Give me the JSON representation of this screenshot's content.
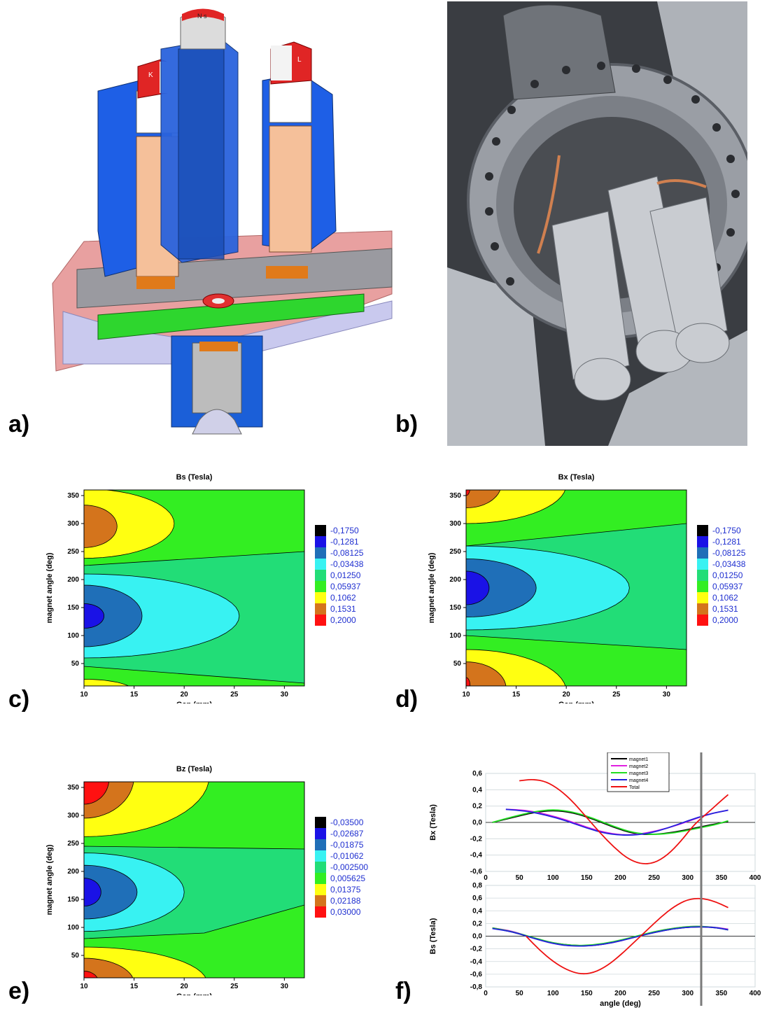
{
  "panel_labels": [
    "a)",
    "b)",
    "c)",
    "d)",
    "e)",
    "f)"
  ],
  "cad_magnet_letters": {
    "center": "N s",
    "left": "K",
    "right": "L"
  },
  "colors": {
    "black": "#000000",
    "blue": "#1a12e6",
    "mid_blue": "#1f6fb8",
    "cyan": "#38f2f2",
    "teal": "#22dd77",
    "green": "#33ee22",
    "yellow": "#ffff11",
    "orange": "#d4741c",
    "red": "#ff1111"
  },
  "contours": [
    {
      "id": "c",
      "title": "Bs (Tesla)",
      "xlabel": "Gap (mm)",
      "ylabel": "magnet angle (deg)",
      "xticks": [
        "10",
        "15",
        "20",
        "25",
        "30"
      ],
      "yticks": [
        "50",
        "100",
        "150",
        "200",
        "250",
        "300",
        "350"
      ],
      "colorbar": [
        "-0,1750",
        "-0,1281",
        "-0,08125",
        "-0,03438",
        "0,01250",
        "0,05937",
        "0,1062",
        "0,1531",
        "0,2000"
      ]
    },
    {
      "id": "d",
      "title": "Bx (Tesla)",
      "xlabel": "Gap (mm)",
      "ylabel": "magnet angle (deg)",
      "xticks": [
        "10",
        "15",
        "20",
        "25",
        "30"
      ],
      "yticks": [
        "50",
        "100",
        "150",
        "200",
        "250",
        "300",
        "350"
      ],
      "colorbar": [
        "-0,1750",
        "-0,1281",
        "-0,08125",
        "-0,03438",
        "0,01250",
        "0,05937",
        "0,1062",
        "0,1531",
        "0,2000"
      ]
    },
    {
      "id": "e",
      "title": "Bz (Tesla)",
      "xlabel": "Gap (mm)",
      "ylabel": "magnet angle (deg)",
      "xticks": [
        "10",
        "15",
        "20",
        "25",
        "30"
      ],
      "yticks": [
        "50",
        "100",
        "150",
        "200",
        "250",
        "300",
        "350"
      ],
      "colorbar": [
        "-0,03500",
        "-0,02687",
        "-0,01875",
        "-0,01062",
        "-0,002500",
        "0,005625",
        "0,01375",
        "0,02188",
        "0,03000"
      ]
    }
  ],
  "chart_data": [
    {
      "type": "line",
      "panel": "f-top",
      "ylabel": "Bx (Tesla)",
      "xlim": [
        0,
        400
      ],
      "ylim": [
        -0.6,
        0.6
      ],
      "xticks": [
        "0",
        "50",
        "100",
        "150",
        "200",
        "250",
        "300",
        "350",
        "400"
      ],
      "yticks": [
        "-0,6",
        "-0,4",
        "-0,2",
        "0,0",
        "0,2",
        "0,4",
        "0,6"
      ],
      "vertical_marker": 320,
      "series": [
        {
          "name": "magnet1",
          "color": "#000000",
          "x": [
            10,
            40,
            70,
            100,
            130,
            160,
            190,
            220,
            250,
            280,
            310,
            340,
            360
          ],
          "y": [
            0.0,
            0.06,
            0.12,
            0.15,
            0.12,
            0.04,
            -0.06,
            -0.14,
            -0.15,
            -0.12,
            -0.07,
            -0.02,
            0.01
          ]
        },
        {
          "name": "magnet2",
          "color": "#e020e0",
          "x": [
            30,
            60,
            90,
            120,
            150,
            180,
            210,
            240,
            270,
            300,
            330,
            360
          ],
          "y": [
            0.16,
            0.15,
            0.1,
            0.03,
            -0.06,
            -0.13,
            -0.16,
            -0.13,
            -0.07,
            0.01,
            0.1,
            0.15
          ]
        },
        {
          "name": "magnet3",
          "color": "#22dd22",
          "x": [
            10,
            40,
            70,
            100,
            130,
            160,
            190,
            220,
            250,
            280,
            310,
            340,
            360
          ],
          "y": [
            0.0,
            0.07,
            0.13,
            0.16,
            0.13,
            0.05,
            -0.05,
            -0.13,
            -0.15,
            -0.13,
            -0.08,
            -0.03,
            0.02
          ]
        },
        {
          "name": "magnet4",
          "color": "#2222dd",
          "x": [
            30,
            60,
            90,
            120,
            150,
            180,
            210,
            240,
            270,
            300,
            330,
            360
          ],
          "y": [
            0.16,
            0.14,
            0.09,
            0.02,
            -0.07,
            -0.14,
            -0.16,
            -0.14,
            -0.07,
            0.02,
            0.1,
            0.15
          ]
        },
        {
          "name": "Total",
          "color": "#ee1111",
          "x": [
            50,
            70,
            90,
            110,
            130,
            150,
            170,
            190,
            210,
            230,
            250,
            270,
            290,
            310,
            330,
            350,
            360
          ],
          "y": [
            0.51,
            0.53,
            0.5,
            0.4,
            0.25,
            0.06,
            -0.13,
            -0.3,
            -0.44,
            -0.51,
            -0.5,
            -0.4,
            -0.23,
            -0.02,
            0.12,
            0.27,
            0.34
          ]
        }
      ]
    },
    {
      "type": "line",
      "panel": "f-bottom",
      "xlabel": "angle (deg)",
      "ylabel": "Bs (Tesla)",
      "xlim": [
        0,
        400
      ],
      "ylim": [
        -0.8,
        0.8
      ],
      "xticks": [
        "0",
        "50",
        "100",
        "150",
        "200",
        "250",
        "300",
        "350",
        "400"
      ],
      "yticks": [
        "-0,8",
        "-0,6",
        "-0,4",
        "-0,2",
        "0,0",
        "0,2",
        "0,4",
        "0,6",
        "0,8"
      ],
      "vertical_marker": 320,
      "series": [
        {
          "name": "magnet1",
          "color": "#000000",
          "x": [
            10,
            40,
            70,
            100,
            130,
            160,
            190,
            220,
            250,
            280,
            310,
            340,
            360
          ],
          "y": [
            0.13,
            0.07,
            -0.03,
            -0.11,
            -0.15,
            -0.15,
            -0.1,
            -0.02,
            0.06,
            0.12,
            0.15,
            0.14,
            0.1
          ]
        },
        {
          "name": "magnet2",
          "color": "#e020e0",
          "x": [
            10,
            40,
            70,
            100,
            130,
            160,
            190,
            220,
            250,
            280,
            310,
            340,
            360
          ],
          "y": [
            0.13,
            0.08,
            -0.03,
            -0.12,
            -0.16,
            -0.15,
            -0.1,
            -0.02,
            0.07,
            0.13,
            0.16,
            0.14,
            0.11
          ]
        },
        {
          "name": "magnet3",
          "color": "#22dd22",
          "x": [
            10,
            40,
            70,
            100,
            130,
            160,
            190,
            220,
            250,
            280,
            310,
            340,
            360
          ],
          "y": [
            0.13,
            0.07,
            -0.02,
            -0.11,
            -0.15,
            -0.14,
            -0.09,
            -0.01,
            0.07,
            0.13,
            0.16,
            0.14,
            0.1
          ]
        },
        {
          "name": "magnet4",
          "color": "#2222dd",
          "x": [
            10,
            40,
            70,
            100,
            130,
            160,
            190,
            220,
            250,
            280,
            310,
            340,
            360
          ],
          "y": [
            0.12,
            0.07,
            -0.03,
            -0.12,
            -0.16,
            -0.15,
            -0.1,
            -0.02,
            0.06,
            0.12,
            0.15,
            0.14,
            0.1
          ]
        },
        {
          "name": "Total",
          "color": "#ee1111",
          "x": [
            60,
            80,
            100,
            120,
            140,
            160,
            180,
            200,
            220,
            240,
            260,
            280,
            300,
            320,
            340,
            360
          ],
          "y": [
            0.0,
            -0.22,
            -0.4,
            -0.53,
            -0.6,
            -0.58,
            -0.47,
            -0.3,
            -0.1,
            0.1,
            0.3,
            0.47,
            0.58,
            0.6,
            0.55,
            0.45
          ]
        }
      ]
    }
  ]
}
